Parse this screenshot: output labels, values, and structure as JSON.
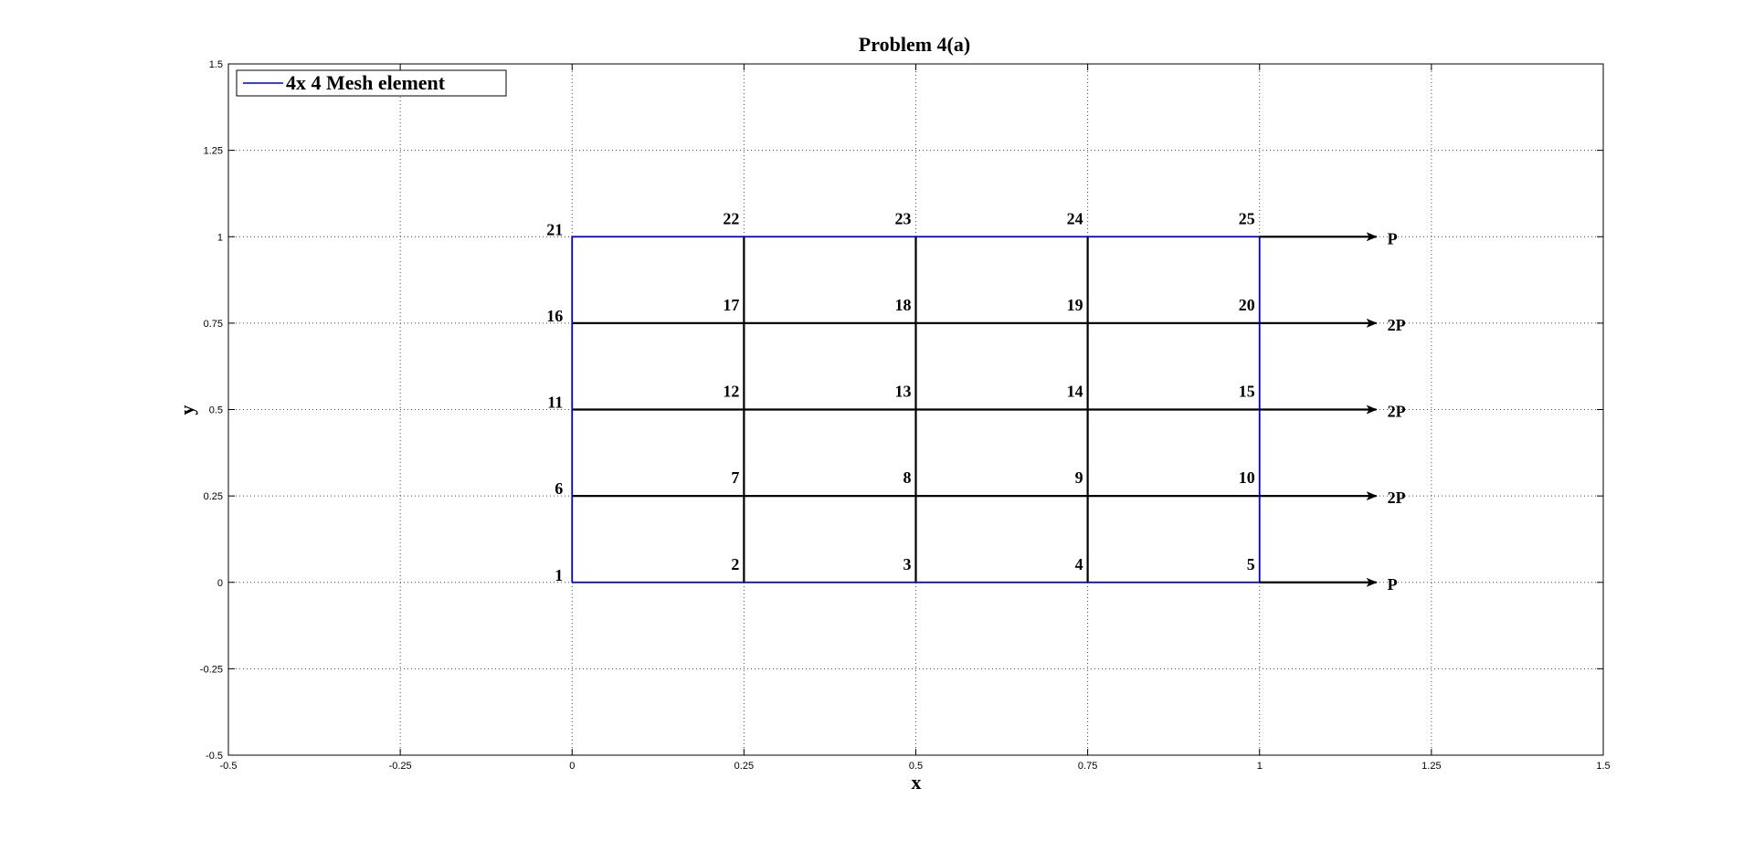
{
  "chart_data": {
    "type": "line",
    "title": "Problem 4(a)",
    "xlabel": "x",
    "ylabel": "y",
    "xlim": [
      -0.5,
      1.5
    ],
    "ylim": [
      -0.5,
      1.5
    ],
    "xticks": [
      -0.5,
      -0.25,
      0,
      0.25,
      0.5,
      0.75,
      1,
      1.25,
      1.5
    ],
    "yticks": [
      -0.5,
      -0.25,
      0,
      0.25,
      0.5,
      0.75,
      1,
      1.25,
      1.5
    ],
    "xtick_labels": [
      "-0.5",
      "-0.25",
      "0",
      "0.25",
      "0.5",
      "0.75",
      "1",
      "1.25",
      "1.5"
    ],
    "ytick_labels": [
      "-0.5",
      "-0.25",
      "0",
      "0.25",
      "0.5",
      "0.75",
      "1",
      "1.25",
      "1.5"
    ],
    "grid": true,
    "legend": {
      "placement": "top-left",
      "entries": [
        "4x 4 Mesh element"
      ]
    },
    "series": [
      {
        "name": "4x 4 Mesh element",
        "color": "#0000cc",
        "x": [
          0,
          1,
          1,
          0,
          0
        ],
        "y": [
          0,
          0,
          1,
          1,
          0
        ]
      }
    ],
    "mesh_lines_color": "#000000",
    "mesh_lines": [
      {
        "x": [
          0,
          1
        ],
        "y": [
          0.25,
          0.25
        ]
      },
      {
        "x": [
          0,
          1
        ],
        "y": [
          0.5,
          0.5
        ]
      },
      {
        "x": [
          0,
          1
        ],
        "y": [
          0.75,
          0.75
        ]
      },
      {
        "x": [
          0.25,
          0.25
        ],
        "y": [
          0,
          1
        ]
      },
      {
        "x": [
          0.5,
          0.5
        ],
        "y": [
          0,
          1
        ]
      },
      {
        "x": [
          0.75,
          0.75
        ],
        "y": [
          0,
          1
        ]
      }
    ],
    "nodes": [
      {
        "id": "1",
        "x": 0,
        "y": 0
      },
      {
        "id": "2",
        "x": 0.25,
        "y": 0
      },
      {
        "id": "3",
        "x": 0.5,
        "y": 0
      },
      {
        "id": "4",
        "x": 0.75,
        "y": 0
      },
      {
        "id": "5",
        "x": 1,
        "y": 0
      },
      {
        "id": "6",
        "x": 0,
        "y": 0.25
      },
      {
        "id": "7",
        "x": 0.25,
        "y": 0.25
      },
      {
        "id": "8",
        "x": 0.5,
        "y": 0.25
      },
      {
        "id": "9",
        "x": 0.75,
        "y": 0.25
      },
      {
        "id": "10",
        "x": 1,
        "y": 0.25
      },
      {
        "id": "11",
        "x": 0,
        "y": 0.5
      },
      {
        "id": "12",
        "x": 0.25,
        "y": 0.5
      },
      {
        "id": "13",
        "x": 0.5,
        "y": 0.5
      },
      {
        "id": "14",
        "x": 0.75,
        "y": 0.5
      },
      {
        "id": "15",
        "x": 1,
        "y": 0.5
      },
      {
        "id": "16",
        "x": 0,
        "y": 0.75
      },
      {
        "id": "17",
        "x": 0.25,
        "y": 0.75
      },
      {
        "id": "18",
        "x": 0.5,
        "y": 0.75
      },
      {
        "id": "19",
        "x": 0.75,
        "y": 0.75
      },
      {
        "id": "20",
        "x": 1,
        "y": 0.75
      },
      {
        "id": "21",
        "x": 0,
        "y": 1
      },
      {
        "id": "22",
        "x": 0.25,
        "y": 1
      },
      {
        "id": "23",
        "x": 0.5,
        "y": 1
      },
      {
        "id": "24",
        "x": 0.75,
        "y": 1
      },
      {
        "id": "25",
        "x": 1,
        "y": 1
      }
    ],
    "loads": [
      {
        "label": "P",
        "y": 0,
        "x_start": 1,
        "x_end": 1.17
      },
      {
        "label": "2P",
        "y": 0.25,
        "x_start": 1,
        "x_end": 1.17
      },
      {
        "label": "2P",
        "y": 0.5,
        "x_start": 1,
        "x_end": 1.17
      },
      {
        "label": "2P",
        "y": 0.75,
        "x_start": 1,
        "x_end": 1.17
      },
      {
        "label": "P",
        "y": 1,
        "x_start": 1,
        "x_end": 1.17
      }
    ]
  }
}
